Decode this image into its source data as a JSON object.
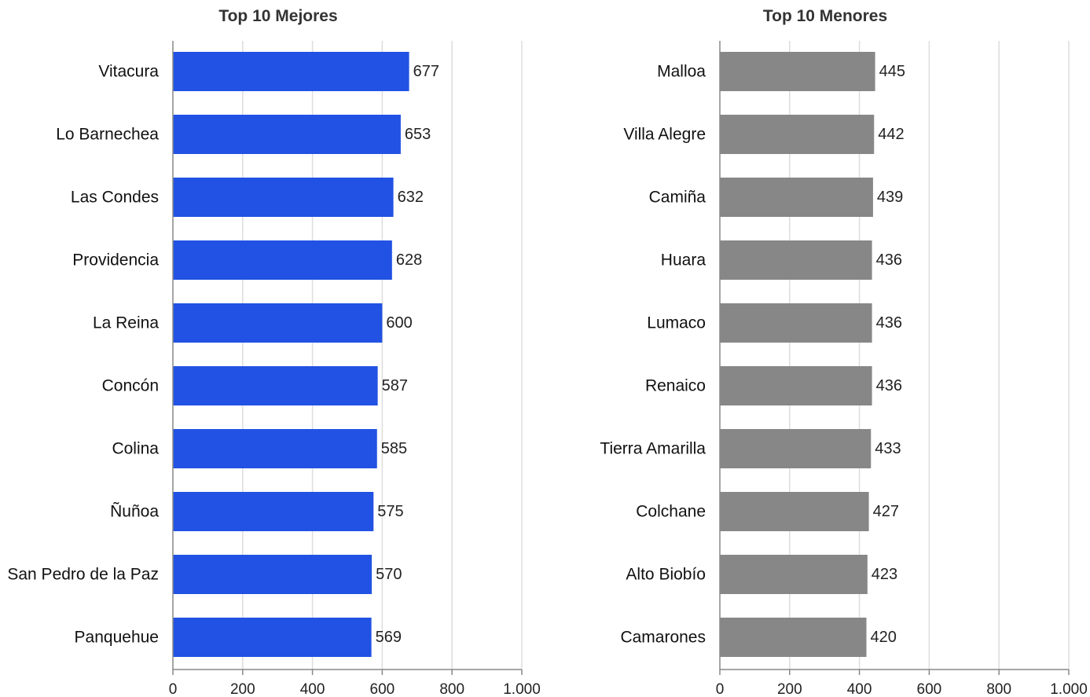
{
  "chart_data": [
    {
      "type": "bar",
      "orientation": "horizontal",
      "title": "Top 10 Mejores",
      "color": "#2152e3",
      "categories": [
        "Vitacura",
        "Lo Barnechea",
        "Las Condes",
        "Providencia",
        "La Reina",
        "Concón",
        "Colina",
        "Ñuñoa",
        "San Pedro de la Paz",
        "Panquehue"
      ],
      "values": [
        677,
        653,
        632,
        628,
        600,
        587,
        585,
        575,
        570,
        569
      ],
      "xlim": [
        0,
        1000
      ],
      "xticks": [
        0,
        200,
        400,
        600,
        800,
        1000
      ],
      "xtick_labels": [
        "0",
        "200",
        "400",
        "600",
        "800",
        "1.000"
      ],
      "grid": true,
      "data_labels": true
    },
    {
      "type": "bar",
      "orientation": "horizontal",
      "title": "Top 10 Menores",
      "color": "#878787",
      "categories": [
        "Malloa",
        "Villa Alegre",
        "Camiña",
        "Huara",
        "Lumaco",
        "Renaico",
        "Tierra Amarilla",
        "Colchane",
        "Alto Biobío",
        "Camarones"
      ],
      "values": [
        445,
        442,
        439,
        436,
        436,
        436,
        433,
        427,
        423,
        420
      ],
      "xlim": [
        0,
        1000
      ],
      "xticks": [
        0,
        200,
        400,
        600,
        800,
        1000
      ],
      "xtick_labels": [
        "0",
        "200",
        "400",
        "600",
        "800",
        "1.000"
      ],
      "grid": true,
      "data_labels": true
    }
  ]
}
